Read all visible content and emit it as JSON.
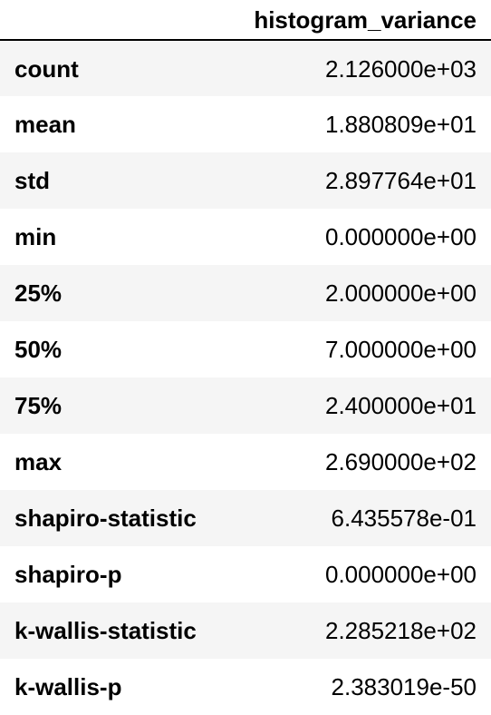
{
  "table": {
    "corner_header": "",
    "column_header": "histogram_variance",
    "rows": [
      {
        "label": "count",
        "value": "2.126000e+03"
      },
      {
        "label": "mean",
        "value": "1.880809e+01"
      },
      {
        "label": "std",
        "value": "2.897764e+01"
      },
      {
        "label": "min",
        "value": "0.000000e+00"
      },
      {
        "label": "25%",
        "value": "2.000000e+00"
      },
      {
        "label": "50%",
        "value": "7.000000e+00"
      },
      {
        "label": "75%",
        "value": "2.400000e+01"
      },
      {
        "label": "max",
        "value": "2.690000e+02"
      },
      {
        "label": "shapiro-statistic",
        "value": "6.435578e-01"
      },
      {
        "label": "shapiro-p",
        "value": "0.000000e+00"
      },
      {
        "label": "k-wallis-statistic",
        "value": "2.285218e+02"
      },
      {
        "label": "k-wallis-p",
        "value": "2.383019e-50"
      }
    ]
  },
  "colors": {
    "stripe": "#f5f5f5",
    "text": "#000000",
    "header_rule": "#000000"
  }
}
